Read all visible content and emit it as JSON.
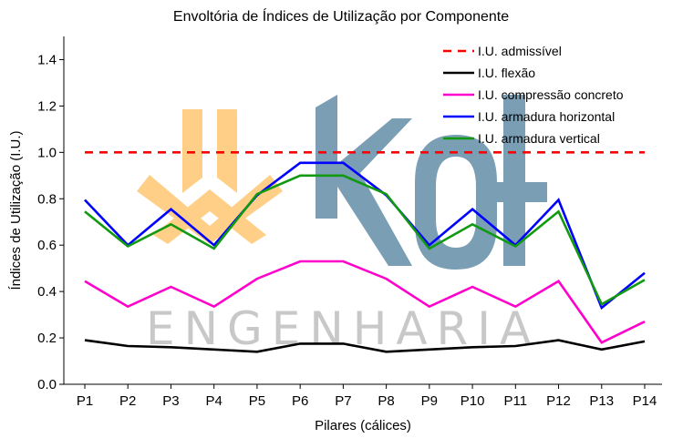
{
  "chart_data": {
    "type": "line",
    "title": "Envoltória de Índices de Utilização por Componente",
    "xlabel": "Pilares (cálices)",
    "ylabel": "Índices de Utilização (I.U.)",
    "ylim": [
      0,
      1.5
    ],
    "yticks": [
      0.0,
      0.2,
      0.4,
      0.6,
      0.8,
      1.0,
      1.2,
      1.4
    ],
    "ytick_labels": [
      "0.0",
      "0.2",
      "0.4",
      "0.6",
      "0.8",
      "1.0",
      "1.2",
      "1.4"
    ],
    "categories": [
      "P1",
      "P2",
      "P3",
      "P4",
      "P5",
      "P6",
      "P7",
      "P8",
      "P9",
      "P10",
      "P11",
      "P12",
      "P13",
      "P14"
    ],
    "grid": false,
    "legend_position": "top-right",
    "series": [
      {
        "name": "I.U. admissível",
        "color": "#ff0000",
        "dashed": true,
        "values": [
          1,
          1,
          1,
          1,
          1,
          1,
          1,
          1,
          1,
          1,
          1,
          1,
          1,
          1
        ]
      },
      {
        "name": "I.U. flexão",
        "color": "#000000",
        "dashed": false,
        "values": [
          0.19,
          0.165,
          0.16,
          0.15,
          0.14,
          0.175,
          0.175,
          0.14,
          0.15,
          0.16,
          0.165,
          0.19,
          0.15,
          0.185
        ]
      },
      {
        "name": "I.U. compressão concreto",
        "color": "#ff00cc",
        "dashed": false,
        "values": [
          0.445,
          0.335,
          0.42,
          0.335,
          0.455,
          0.53,
          0.53,
          0.455,
          0.335,
          0.42,
          0.335,
          0.445,
          0.18,
          0.27
        ]
      },
      {
        "name": "I.U. armadura horizontal",
        "color": "#0000ff",
        "dashed": false,
        "values": [
          0.795,
          0.6,
          0.755,
          0.6,
          0.815,
          0.955,
          0.955,
          0.815,
          0.6,
          0.755,
          0.6,
          0.795,
          0.33,
          0.48
        ]
      },
      {
        "name": "I.U. armadura vertical",
        "color": "#119911",
        "dashed": false,
        "values": [
          0.745,
          0.595,
          0.69,
          0.585,
          0.82,
          0.9,
          0.9,
          0.82,
          0.585,
          0.69,
          0.595,
          0.745,
          0.345,
          0.45
        ]
      }
    ]
  },
  "watermark": {
    "text": "ENGENHARIA"
  }
}
